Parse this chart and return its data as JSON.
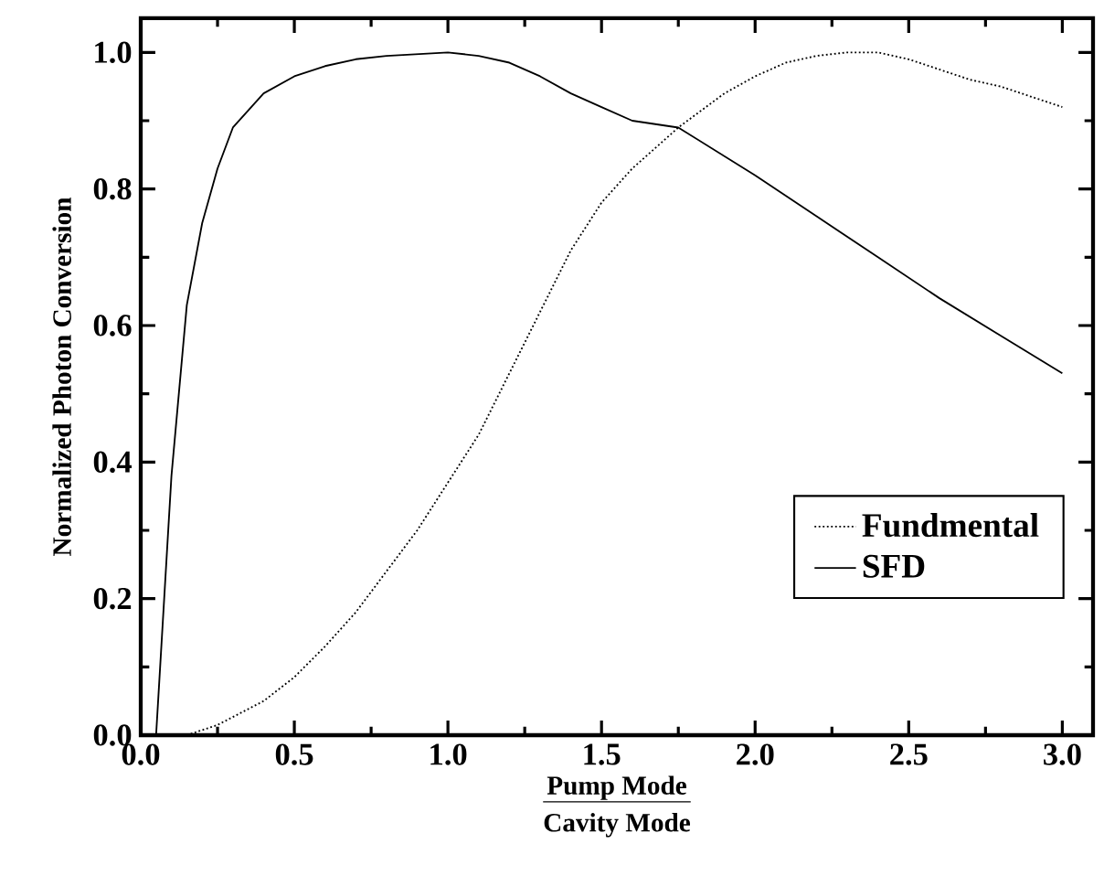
{
  "chart_data": {
    "type": "line",
    "xlabel": "Pump Mode",
    "annotations": [
      "Cavity Mode"
    ],
    "ylabel": "Normalized Photon Conversion",
    "xlim": [
      0,
      3.1
    ],
    "ylim": [
      0,
      1.05
    ],
    "xticks": [
      {
        "value": 0,
        "label": "0.0"
      },
      0.5,
      {
        "value": 1,
        "label": "1.0"
      },
      1.5,
      {
        "value": 2,
        "label": "2.0"
      },
      2.5,
      {
        "value": 3,
        "label": "3.0"
      }
    ],
    "yticks": [
      {
        "value": 0,
        "label": "0.0"
      },
      0.2,
      0.4,
      0.6,
      0.8,
      {
        "value": 1,
        "label": "1.0"
      }
    ],
    "legend": "right",
    "grid": false,
    "series": [
      {
        "name": "Fundmental",
        "color": "#000000",
        "line_style": "dotted",
        "x": [
          0.15,
          0.25,
          0.4,
          0.5,
          0.6,
          0.7,
          0.8,
          0.9,
          1.0,
          1.1,
          1.2,
          1.3,
          1.4,
          1.5,
          1.6,
          1.75,
          1.9,
          2.0,
          2.1,
          2.2,
          2.3,
          2.4,
          2.5,
          2.6,
          2.7,
          2.8,
          2.9,
          3.0
        ],
        "values": [
          0,
          0.015,
          0.05,
          0.085,
          0.13,
          0.18,
          0.24,
          0.3,
          0.37,
          0.44,
          0.53,
          0.62,
          0.71,
          0.78,
          0.83,
          0.89,
          0.94,
          0.965,
          0.985,
          0.995,
          1.0,
          1.0,
          0.99,
          0.975,
          0.96,
          0.95,
          0.935,
          0.92
        ]
      },
      {
        "name": "SFD",
        "color": "#000000",
        "line_style": "solid",
        "x": [
          0.05,
          0.1,
          0.15,
          0.2,
          0.25,
          0.3,
          0.4,
          0.5,
          0.6,
          0.7,
          0.8,
          1.0,
          1.1,
          1.2,
          1.3,
          1.4,
          1.5,
          1.6,
          1.75,
          2.0,
          2.2,
          2.4,
          2.6,
          2.8,
          3.0
        ],
        "values": [
          0,
          0.38,
          0.63,
          0.75,
          0.83,
          0.89,
          0.94,
          0.965,
          0.98,
          0.99,
          0.995,
          1.0,
          0.995,
          0.985,
          0.965,
          0.94,
          0.92,
          0.9,
          0.89,
          0.82,
          0.76,
          0.7,
          0.64,
          0.585,
          0.53
        ]
      }
    ]
  }
}
